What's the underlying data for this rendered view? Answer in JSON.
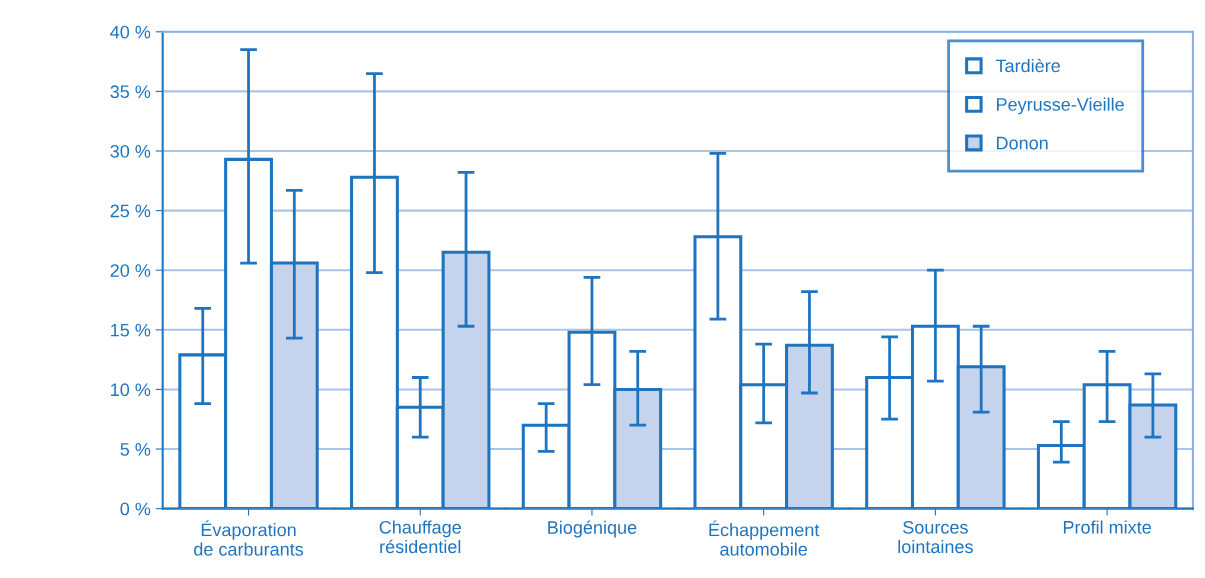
{
  "chart_data": {
    "type": "bar",
    "categories": [
      "Évaporation\nde carburants",
      "Chauffage\nrésidentiel",
      "Biogénique",
      "Échappement\nautomobile",
      "Sources\nlointaines",
      "Profil mixte"
    ],
    "series": [
      {
        "name": "Tardière",
        "color": "#ffffff",
        "values": [
          12.9,
          27.8,
          7.0,
          22.8,
          11.0,
          5.3
        ],
        "errors": [
          [
            8.8,
            16.8
          ],
          [
            19.8,
            36.5
          ],
          [
            4.8,
            8.8
          ],
          [
            15.9,
            29.8
          ],
          [
            7.5,
            14.4
          ],
          [
            3.9,
            7.3
          ]
        ]
      },
      {
        "name": "Peyrusse-Vieille",
        "color": "#ffffff",
        "values": [
          29.3,
          8.5,
          14.8,
          10.4,
          15.3,
          10.4
        ],
        "errors": [
          [
            20.6,
            38.5
          ],
          [
            6.0,
            11.0
          ],
          [
            10.4,
            19.4
          ],
          [
            7.2,
            13.8
          ],
          [
            10.7,
            20.0
          ],
          [
            7.3,
            13.2
          ]
        ]
      },
      {
        "name": "Donon",
        "color": "#c5d3ec",
        "values": [
          20.6,
          21.5,
          10.0,
          13.7,
          11.9,
          8.7
        ],
        "errors": [
          [
            14.3,
            26.7
          ],
          [
            15.3,
            28.2
          ],
          [
            7.0,
            13.2
          ],
          [
            9.7,
            18.2
          ],
          [
            8.1,
            15.3
          ],
          [
            6.0,
            11.3
          ]
        ]
      }
    ],
    "ylim": [
      0,
      40
    ],
    "yticks": [
      {
        "value": 0,
        "label": "0 %"
      },
      {
        "value": 5,
        "label": "5 %"
      },
      {
        "value": 10,
        "label": "10 %"
      },
      {
        "value": 15,
        "label": "15 %"
      },
      {
        "value": 20,
        "label": "20 %"
      },
      {
        "value": 25,
        "label": "25 %"
      },
      {
        "value": 30,
        "label": "30 %"
      },
      {
        "value": 35,
        "label": "35 %"
      },
      {
        "value": 40,
        "label": "40 %"
      }
    ],
    "grid": "y",
    "legend": "top right"
  }
}
